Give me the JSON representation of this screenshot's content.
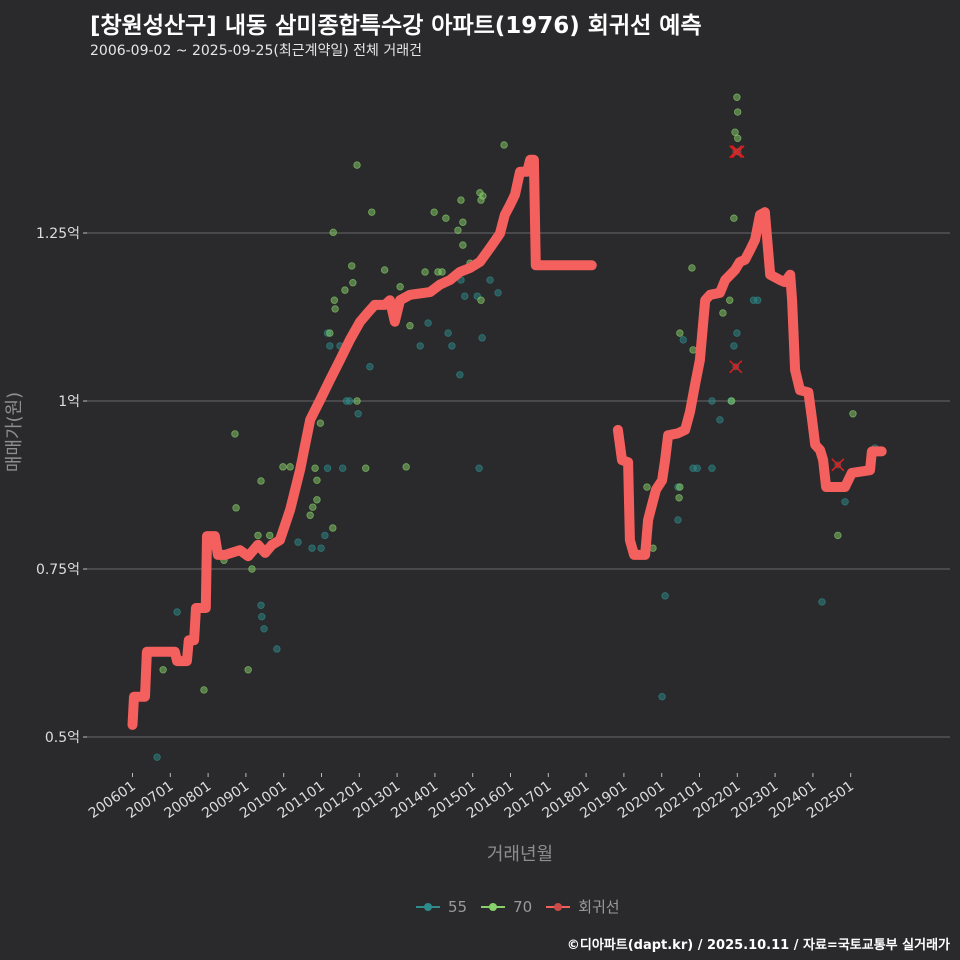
{
  "header": {
    "title": "[창원성산구] 내동 삼미종합특수강 아파트(1976) 회귀선 예측",
    "subtitle": "2006-09-02 ~ 2025-09-25(최근계약일) 전체 거래건"
  },
  "caption": "©디아파트(dapt.kr) / 2025.10.11 / 자료=국토교통부 실거래가",
  "colors": {
    "background": "#2a292b",
    "s55": "#2e8b8b",
    "s70": "#86cf6a",
    "regression": "#f4605e",
    "grid": "#5c5c5c",
    "outlier": "#e02020"
  },
  "chart_data": {
    "type": "scatter",
    "title": "[창원성산구] 내동 삼미종합특수강 아파트(1976) 회귀선 예측",
    "xlabel": "거래년월",
    "ylabel": "매매가(원)",
    "xlim": [
      2005.4,
      2026.4
    ],
    "ylim": [
      0.4,
      1.5
    ],
    "y_ticks": [
      {
        "value": 0.5,
        "label": "0.5억"
      },
      {
        "value": 0.75,
        "label": "0.75억"
      },
      {
        "value": 1.0,
        "label": "1억"
      },
      {
        "value": 1.25,
        "label": "1.25억"
      }
    ],
    "x_ticks": [
      {
        "value": 2006,
        "label": "200601"
      },
      {
        "value": 2007,
        "label": "200701"
      },
      {
        "value": 2008,
        "label": "200801"
      },
      {
        "value": 2009,
        "label": "200901"
      },
      {
        "value": 2010,
        "label": "201001"
      },
      {
        "value": 2011,
        "label": "201101"
      },
      {
        "value": 2012,
        "label": "201201"
      },
      {
        "value": 2013,
        "label": "201301"
      },
      {
        "value": 2014,
        "label": "201401"
      },
      {
        "value": 2015,
        "label": "201501"
      },
      {
        "value": 2016,
        "label": "201601"
      },
      {
        "value": 2017,
        "label": "201701"
      },
      {
        "value": 2018,
        "label": "201801"
      },
      {
        "value": 2019,
        "label": "201901"
      },
      {
        "value": 2020,
        "label": "202001"
      },
      {
        "value": 2021,
        "label": "202101"
      },
      {
        "value": 2022,
        "label": "202201"
      },
      {
        "value": 2023,
        "label": "202301"
      },
      {
        "value": 2024,
        "label": "202401"
      },
      {
        "value": 2025,
        "label": "202501"
      }
    ],
    "grid": true,
    "legend": {
      "placement": "bottom",
      "items": [
        {
          "key": "s55",
          "label": "55"
        },
        {
          "key": "s70",
          "label": "70"
        },
        {
          "key": "regression",
          "label": "회귀선"
        }
      ]
    },
    "series": [
      {
        "name": "55",
        "points": [
          [
            2006.65,
            0.47
          ],
          [
            2007.18,
            0.686
          ],
          [
            2009.4,
            0.696
          ],
          [
            2009.42,
            0.679
          ],
          [
            2009.48,
            0.661
          ],
          [
            2009.82,
            0.631
          ],
          [
            2010.38,
            0.79
          ],
          [
            2010.75,
            0.781
          ],
          [
            2010.99,
            0.781
          ],
          [
            2011.09,
            0.8
          ],
          [
            2011.16,
            0.9
          ],
          [
            2011.16,
            1.101
          ],
          [
            2011.22,
            1.082
          ],
          [
            2011.49,
            1.082
          ],
          [
            2011.56,
            0.9
          ],
          [
            2011.66,
            1.0
          ],
          [
            2011.74,
            1.0
          ],
          [
            2011.97,
            0.981
          ],
          [
            2012.28,
            1.051
          ],
          [
            2013.61,
            1.082
          ],
          [
            2013.82,
            1.116
          ],
          [
            2014.35,
            1.101
          ],
          [
            2014.45,
            1.082
          ],
          [
            2014.66,
            1.039
          ],
          [
            2014.69,
            1.18
          ],
          [
            2014.79,
            1.156
          ],
          [
            2015.12,
            1.156
          ],
          [
            2015.17,
            0.9
          ],
          [
            2015.25,
            1.094
          ],
          [
            2015.46,
            1.18
          ],
          [
            2015.67,
            1.161
          ],
          [
            2020.01,
            0.56
          ],
          [
            2020.09,
            0.71
          ],
          [
            2020.43,
            0.872
          ],
          [
            2020.43,
            0.823
          ],
          [
            2020.57,
            1.091
          ],
          [
            2020.83,
            0.9
          ],
          [
            2020.94,
            0.9
          ],
          [
            2021.33,
            0.9
          ],
          [
            2021.33,
            1.0
          ],
          [
            2021.54,
            0.972
          ],
          [
            2021.83,
            1.0
          ],
          [
            2021.91,
            1.082
          ],
          [
            2021.99,
            1.101
          ],
          [
            2022.43,
            1.15
          ],
          [
            2022.54,
            1.15
          ],
          [
            2023.53,
            1.101
          ],
          [
            2024.24,
            0.701
          ],
          [
            2024.85,
            0.85
          ],
          [
            2025.64,
            0.93
          ]
        ]
      },
      {
        "name": "70",
        "points": [
          [
            2006.81,
            0.6
          ],
          [
            2007.89,
            0.57
          ],
          [
            2008.42,
            0.763
          ],
          [
            2008.71,
            0.951
          ],
          [
            2008.74,
            0.841
          ],
          [
            2009.06,
            0.6
          ],
          [
            2009.16,
            0.75
          ],
          [
            2009.32,
            0.8
          ],
          [
            2009.4,
            0.881
          ],
          [
            2009.63,
            0.8
          ],
          [
            2009.98,
            0.902
          ],
          [
            2010.17,
            0.902
          ],
          [
            2010.7,
            0.83
          ],
          [
            2010.77,
            0.842
          ],
          [
            2010.83,
            0.9
          ],
          [
            2010.88,
            0.853
          ],
          [
            2010.88,
            0.882
          ],
          [
            2010.97,
            0.967
          ],
          [
            2011.22,
            1.101
          ],
          [
            2011.3,
            0.811
          ],
          [
            2011.31,
            1.251
          ],
          [
            2011.34,
            1.15
          ],
          [
            2011.36,
            1.137
          ],
          [
            2011.62,
            1.165
          ],
          [
            2011.8,
            1.201
          ],
          [
            2011.83,
            1.176
          ],
          [
            2011.94,
            1.0
          ],
          [
            2011.94,
            1.351
          ],
          [
            2012.17,
            0.9
          ],
          [
            2012.33,
            1.281
          ],
          [
            2012.67,
            1.195
          ],
          [
            2013.08,
            1.17
          ],
          [
            2013.24,
            0.902
          ],
          [
            2013.34,
            1.112
          ],
          [
            2013.74,
            1.192
          ],
          [
            2013.98,
            1.281
          ],
          [
            2014.08,
            1.192
          ],
          [
            2014.19,
            1.192
          ],
          [
            2014.29,
            1.272
          ],
          [
            2014.61,
            1.254
          ],
          [
            2014.69,
            1.299
          ],
          [
            2014.74,
            1.266
          ],
          [
            2014.74,
            1.232
          ],
          [
            2014.93,
            1.205
          ],
          [
            2015.19,
            1.31
          ],
          [
            2015.22,
            1.299
          ],
          [
            2015.27,
            1.305
          ],
          [
            2015.22,
            1.15
          ],
          [
            2015.83,
            1.381
          ],
          [
            2019.61,
            0.872
          ],
          [
            2019.77,
            0.781
          ],
          [
            2020.48,
            0.872
          ],
          [
            2020.46,
            0.856
          ],
          [
            2020.48,
            1.101
          ],
          [
            2020.83,
            1.076
          ],
          [
            2020.8,
            1.198
          ],
          [
            2021.62,
            1.131
          ],
          [
            2021.85,
            1.0
          ],
          [
            2021.8,
            1.15
          ],
          [
            2021.91,
            1.272
          ],
          [
            2021.99,
            1.452
          ],
          [
            2022.01,
            1.43
          ],
          [
            2021.94,
            1.4
          ],
          [
            2022.01,
            1.391
          ],
          [
            2023.4,
            1.161
          ],
          [
            2024.66,
            0.8
          ],
          [
            2025.06,
            0.981
          ]
        ]
      }
    ],
    "outliers": [
      [
        2021.96,
        1.371
      ],
      [
        2022.02,
        1.371
      ],
      [
        2021.96,
        1.051
      ],
      [
        2024.66,
        0.905
      ]
    ],
    "regression": [
      [
        [
          2006.0,
          0.518
        ],
        [
          2006.04,
          0.56
        ],
        [
          2006.33,
          0.56
        ],
        [
          2006.38,
          0.627
        ],
        [
          2007.12,
          0.627
        ],
        [
          2007.18,
          0.613
        ],
        [
          2007.44,
          0.613
        ],
        [
          2007.49,
          0.644
        ],
        [
          2007.63,
          0.644
        ],
        [
          2007.68,
          0.692
        ],
        [
          2007.94,
          0.692
        ],
        [
          2007.97,
          0.799
        ],
        [
          2008.18,
          0.799
        ],
        [
          2008.26,
          0.771
        ],
        [
          2008.45,
          0.771
        ],
        [
          2008.84,
          0.778
        ],
        [
          2009.06,
          0.769
        ],
        [
          2009.32,
          0.786
        ],
        [
          2009.51,
          0.774
        ],
        [
          2009.69,
          0.786
        ],
        [
          2009.9,
          0.793
        ],
        [
          2010.17,
          0.838
        ],
        [
          2010.43,
          0.897
        ],
        [
          2010.7,
          0.972
        ],
        [
          2010.96,
          1.001
        ],
        [
          2011.22,
          1.031
        ],
        [
          2011.49,
          1.061
        ],
        [
          2011.75,
          1.091
        ],
        [
          2012.02,
          1.118
        ],
        [
          2012.28,
          1.135
        ],
        [
          2012.41,
          1.143
        ],
        [
          2012.68,
          1.143
        ],
        [
          2012.81,
          1.15
        ],
        [
          2012.94,
          1.118
        ],
        [
          2013.08,
          1.15
        ],
        [
          2013.34,
          1.158
        ],
        [
          2013.87,
          1.162
        ],
        [
          2014.13,
          1.173
        ],
        [
          2014.4,
          1.18
        ],
        [
          2014.66,
          1.192
        ],
        [
          2014.93,
          1.198
        ],
        [
          2015.19,
          1.207
        ],
        [
          2015.46,
          1.228
        ],
        [
          2015.72,
          1.249
        ],
        [
          2015.85,
          1.277
        ],
        [
          2015.99,
          1.292
        ],
        [
          2016.12,
          1.307
        ],
        [
          2016.25,
          1.341
        ],
        [
          2016.44,
          1.341
        ],
        [
          2016.52,
          1.359
        ],
        [
          2016.62,
          1.359
        ],
        [
          2016.67,
          1.202
        ],
        [
          2018.15,
          1.202
        ]
      ],
      [
        [
          2018.84,
          0.957
        ],
        [
          2018.95,
          0.912
        ],
        [
          2019.11,
          0.909
        ],
        [
          2019.16,
          0.793
        ],
        [
          2019.27,
          0.771
        ],
        [
          2019.56,
          0.771
        ],
        [
          2019.64,
          0.823
        ],
        [
          2019.74,
          0.845
        ],
        [
          2019.85,
          0.868
        ],
        [
          2020.01,
          0.882
        ],
        [
          2020.09,
          0.912
        ],
        [
          2020.17,
          0.949
        ],
        [
          2020.43,
          0.952
        ],
        [
          2020.62,
          0.957
        ],
        [
          2020.75,
          0.984
        ],
        [
          2020.88,
          1.024
        ],
        [
          2021.01,
          1.061
        ],
        [
          2021.15,
          1.15
        ],
        [
          2021.28,
          1.158
        ],
        [
          2021.54,
          1.161
        ],
        [
          2021.68,
          1.18
        ],
        [
          2021.94,
          1.195
        ],
        [
          2022.07,
          1.207
        ],
        [
          2022.2,
          1.21
        ],
        [
          2022.34,
          1.225
        ],
        [
          2022.47,
          1.24
        ],
        [
          2022.6,
          1.277
        ],
        [
          2022.73,
          1.281
        ],
        [
          2022.87,
          1.188
        ],
        [
          2023.13,
          1.18
        ],
        [
          2023.26,
          1.177
        ],
        [
          2023.4,
          1.188
        ],
        [
          2023.45,
          1.15
        ],
        [
          2023.53,
          1.046
        ],
        [
          2023.66,
          1.016
        ],
        [
          2023.88,
          1.013
        ],
        [
          2023.98,
          0.972
        ],
        [
          2024.06,
          0.935
        ],
        [
          2024.19,
          0.927
        ],
        [
          2024.27,
          0.912
        ],
        [
          2024.35,
          0.872
        ],
        [
          2024.85,
          0.872
        ],
        [
          2025.03,
          0.893
        ],
        [
          2025.51,
          0.897
        ],
        [
          2025.56,
          0.925
        ],
        [
          2025.82,
          0.925
        ]
      ]
    ]
  }
}
